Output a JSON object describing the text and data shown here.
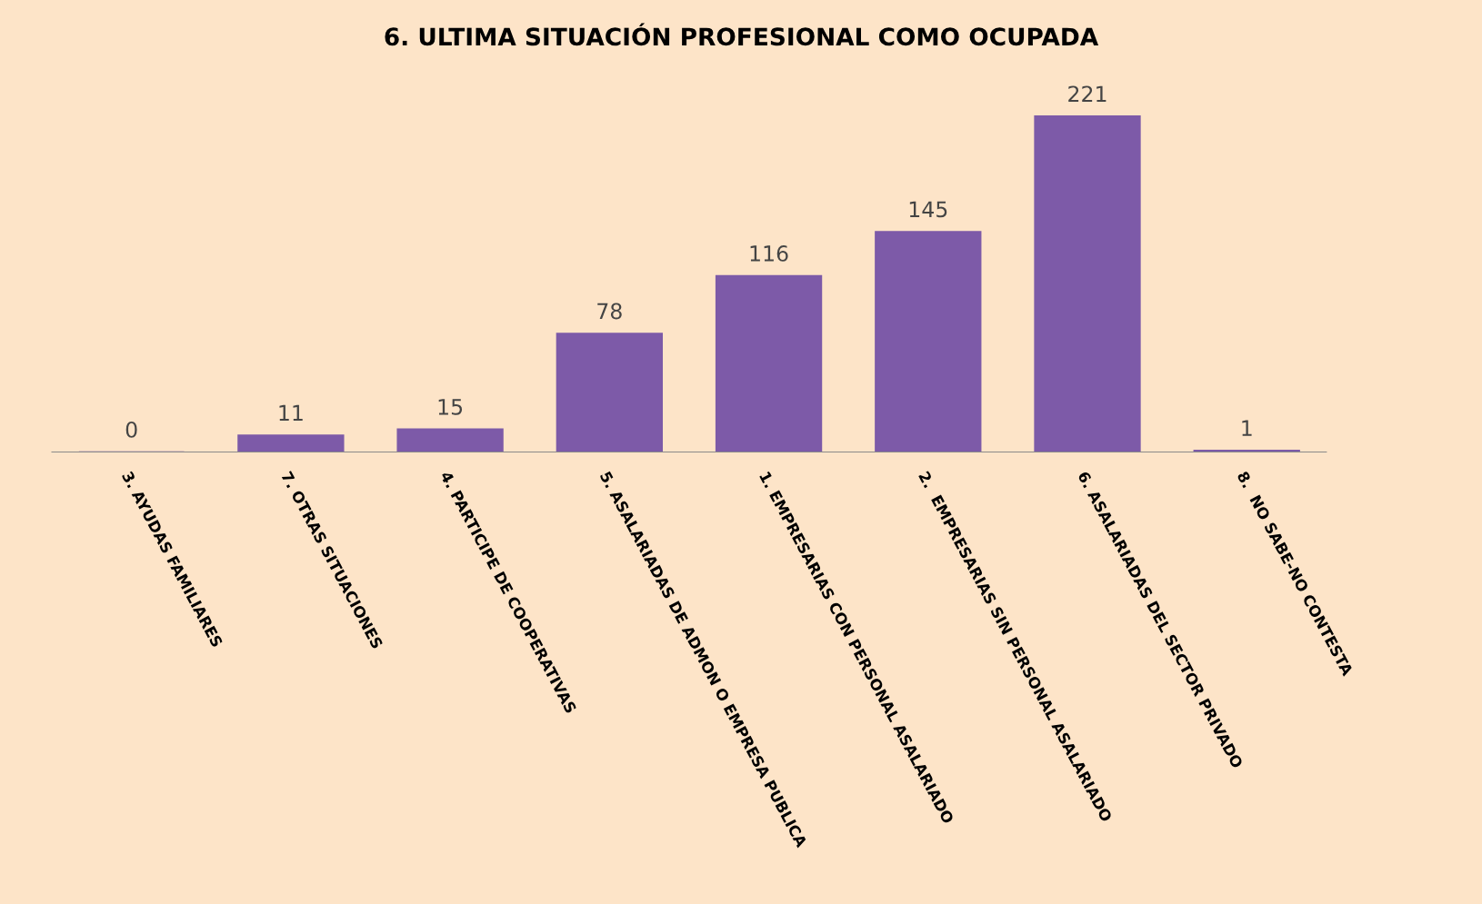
{
  "chart_data": {
    "type": "bar",
    "title": "6. ULTIMA SITUACIÓN PROFESIONAL COMO OCUPADA",
    "categories": [
      "3. AYUDAS FAMILIARES",
      "7. OTRAS SITUACIONES",
      "4. PARTICIPE DE COOPERATIVAS",
      "5. ASALARIADAS DE ADMON O EMPRESA PUBLICA",
      "1. EMPRESARIAS CON PERSONAL ASALARIADO",
      "2.  EMPRESARIAS SIN PERSONAL ASALARIADO",
      "6. ASALARIADAS DEL SECTOR PRIVADO",
      "8.  NO SABE-NO CONTESTA"
    ],
    "values": [
      0,
      11,
      15,
      78,
      116,
      145,
      221,
      1
    ],
    "color": "#7d5aa8",
    "data_labels": true,
    "grid": false,
    "legend": false
  }
}
